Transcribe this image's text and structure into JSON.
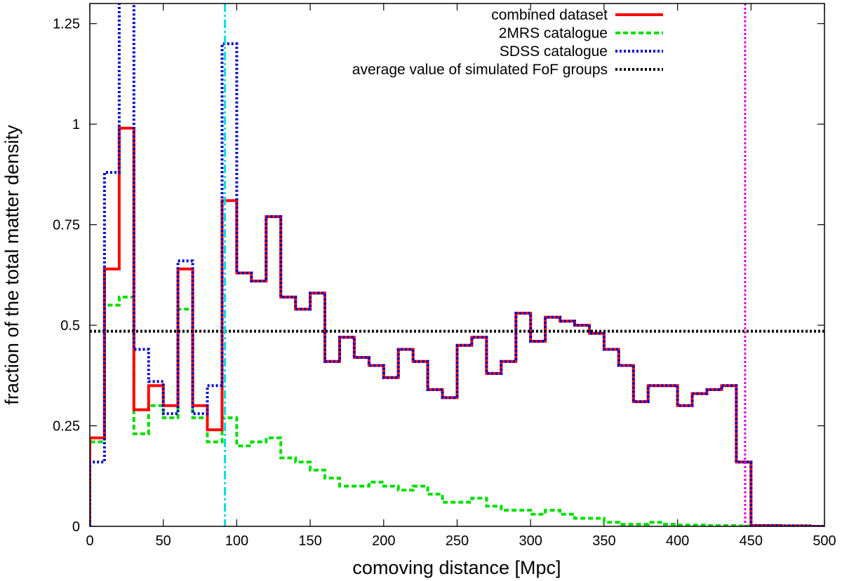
{
  "chart_data": {
    "type": "line",
    "xlabel": "comoving distance [Mpc]",
    "ylabel": "fraction of the total matter density",
    "xlim": [
      0,
      500
    ],
    "ylim": [
      0,
      1.3
    ],
    "x_ticks": [
      "0",
      "50",
      "100",
      "150",
      "200",
      "250",
      "300",
      "350",
      "400",
      "450",
      "500"
    ],
    "y_ticks": [
      "0",
      "0.25",
      "0.5",
      "0.75",
      "1",
      "1.25"
    ],
    "y_tick_values": [
      0,
      0.25,
      0.5,
      0.75,
      1.0,
      1.25
    ],
    "grid": false,
    "legend_position": "top-right",
    "bin_edges": [
      0,
      10,
      20,
      30,
      40,
      50,
      60,
      70,
      80,
      90,
      100,
      110,
      120,
      130,
      140,
      150,
      160,
      170,
      180,
      190,
      200,
      210,
      220,
      230,
      240,
      250,
      260,
      270,
      280,
      290,
      300,
      310,
      320,
      330,
      340,
      350,
      360,
      370,
      380,
      390,
      400,
      410,
      420,
      430,
      440,
      450,
      460,
      470,
      480,
      490,
      500
    ],
    "series": [
      {
        "name": "combined dataset",
        "color": "#ff0000",
        "dash": "solid",
        "values": [
          0.22,
          0.64,
          0.99,
          0.29,
          0.35,
          0.3,
          0.64,
          0.3,
          0.24,
          0.81,
          0.63,
          0.61,
          0.77,
          0.57,
          0.54,
          0.58,
          0.41,
          0.47,
          0.42,
          0.4,
          0.37,
          0.44,
          0.41,
          0.34,
          0.32,
          0.45,
          0.47,
          0.38,
          0.41,
          0.53,
          0.46,
          0.52,
          0.51,
          0.5,
          0.48,
          0.44,
          0.4,
          0.31,
          0.35,
          0.35,
          0.3,
          0.33,
          0.34,
          0.35,
          0.16,
          0.002,
          0.002,
          0.001,
          0.001,
          0.0
        ]
      },
      {
        "name": "2MRS catalogue",
        "color": "#00dd00",
        "dash": "dashed",
        "values": [
          0.21,
          0.55,
          0.57,
          0.23,
          0.3,
          0.27,
          0.54,
          0.27,
          0.21,
          0.27,
          0.2,
          0.21,
          0.22,
          0.17,
          0.16,
          0.14,
          0.12,
          0.1,
          0.1,
          0.11,
          0.1,
          0.09,
          0.1,
          0.08,
          0.06,
          0.06,
          0.07,
          0.05,
          0.04,
          0.04,
          0.03,
          0.04,
          0.03,
          0.02,
          0.02,
          0.01,
          0.005,
          0.005,
          0.01,
          0.005,
          0.003,
          0.003,
          0.002,
          0.002,
          0.001,
          0.001,
          0.001,
          0.001,
          0.0,
          0.0
        ]
      },
      {
        "name": "SDSS catalogue",
        "color": "#0000cc",
        "dash": "dotted",
        "values": [
          0.16,
          0.88,
          1.32,
          0.44,
          0.36,
          0.28,
          0.66,
          0.28,
          0.35,
          1.2,
          0.63,
          0.61,
          0.77,
          0.57,
          0.54,
          0.58,
          0.41,
          0.47,
          0.42,
          0.4,
          0.37,
          0.44,
          0.41,
          0.34,
          0.32,
          0.45,
          0.47,
          0.38,
          0.41,
          0.53,
          0.46,
          0.52,
          0.51,
          0.5,
          0.48,
          0.44,
          0.4,
          0.31,
          0.35,
          0.35,
          0.3,
          0.33,
          0.34,
          0.35,
          0.16,
          0.002,
          0.002,
          0.001,
          0.001,
          0.0
        ]
      },
      {
        "name": "average value of simulated FoF groups",
        "color": "#000000",
        "dash": "dotted",
        "constant": 0.485
      }
    ],
    "vertical_lines": [
      {
        "x": 92,
        "color": "#00dddd",
        "dash": "dash-dot"
      },
      {
        "x": 446,
        "color": "#dd00dd",
        "dash": "dotted"
      }
    ]
  }
}
